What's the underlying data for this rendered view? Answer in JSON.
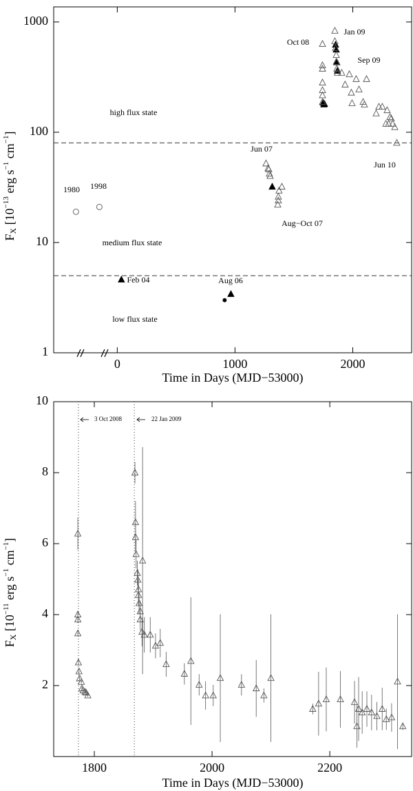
{
  "chart_data": [
    {
      "type": "scatter",
      "ylog": true,
      "xlabel": "Time in Days (MJD−53000)",
      "ylabel_parts": [
        "F",
        "X",
        " [10",
        "−13",
        " erg s",
        "−1",
        " cm",
        "−1",
        "]"
      ],
      "xlim": [
        -540,
        2500
      ],
      "ylim": [
        1,
        1370
      ],
      "xticks": [
        0,
        1000,
        2000
      ],
      "yticks": [
        1,
        10,
        100,
        1000
      ],
      "hlines": [
        80,
        5
      ],
      "annotations": [
        "1980",
        "1998",
        "high flux state",
        "medium flux state",
        "low flux state",
        "Feb 04",
        "Aug 06",
        "Jun 07",
        "Aug−Oct 07",
        "Oct 08",
        "Jan 09",
        "Sep 09",
        "Jun 10"
      ],
      "series": [
        {
          "marker": "open-circle",
          "color": "#555555",
          "x": [
            -351,
            -152
          ],
          "values": [
            19,
            21
          ]
        },
        {
          "marker": "filled-circle",
          "color": "#000000",
          "x": [
            912
          ],
          "values": [
            3.0
          ]
        },
        {
          "marker": "filled-triangle",
          "color": "#000000",
          "x": [
            35,
            965,
            1316,
            1749,
            1754,
            1760,
            1854,
            1860,
            1865,
            1870
          ],
          "values": [
            4.6,
            3.4,
            32,
            185,
            178,
            180,
            620,
            560,
            430,
            360
          ]
        },
        {
          "marker": "open-triangle",
          "color": "#555555",
          "x": [
            1263,
            1281,
            1287,
            1292,
            1298,
            1368,
            1368,
            1363,
            1374,
            1398,
            1743,
            1743,
            1743,
            1743,
            1743,
            1743,
            1743,
            1848,
            1848,
            1854,
            1860,
            1860,
            1865,
            1870,
            1906,
            1935,
            1971,
            1988,
            1994,
            2029,
            2053,
            2088,
            2099,
            2117,
            2199,
            2222,
            2251,
            2281,
            2292,
            2304,
            2316,
            2327,
            2339,
            2357,
            2374
          ],
          "values": [
            52,
            47,
            46,
            42,
            40,
            26,
            24,
            22,
            29.5,
            32,
            631,
            404,
            376,
            282,
            240,
            216,
            188,
            830,
            668,
            580,
            500,
            434,
            376,
            345,
            345,
            270,
            335,
            228,
            183,
            303,
            244,
            188,
            178,
            303,
            148,
            170,
            170,
            119,
            158,
            119,
            137,
            133,
            119,
            111,
            80
          ]
        }
      ]
    },
    {
      "type": "scatter",
      "ylog": false,
      "xlabel": "Time in Days (MJD−53000)",
      "ylabel_parts": [
        "F",
        "X",
        " [10",
        "−11",
        " erg s",
        "−1",
        " cm",
        "−1",
        "]"
      ],
      "xlim": [
        1731,
        2339
      ],
      "ylim": [
        0,
        10
      ],
      "xticks": [
        1800,
        2000,
        2200
      ],
      "yticks": [
        2,
        4,
        6,
        8,
        10
      ],
      "vlines": [
        1773,
        1868
      ],
      "annotations": [
        "3 Oct 2008",
        "22 Jan 2009"
      ],
      "series": [
        {
          "marker": "open-triangle",
          "color": "#555555",
          "x": [
            1772,
            1772,
            1772,
            1772,
            1773,
            1774,
            1775,
            1778,
            1779,
            1781,
            1784,
            1786,
            1789,
            1869,
            1870,
            1870,
            1871,
            1873,
            1874,
            1875,
            1875,
            1876,
            1878,
            1878,
            1882,
            1881,
            1885,
            1895,
            1904,
            1912,
            1922,
            1953,
            1964,
            1978,
            1989,
            2002,
            2014,
            2050,
            2075,
            2088,
            2100,
            2171,
            2181,
            2194,
            2218,
            2242,
            2246,
            2249,
            2255,
            2263,
            2271,
            2280,
            2289,
            2296,
            2305,
            2315,
            2324
          ],
          "values": [
            6.28,
            4.0,
            3.86,
            3.47,
            2.65,
            2.4,
            2.2,
            2.1,
            1.92,
            1.86,
            1.82,
            1.8,
            1.72,
            8.0,
            6.6,
            6.18,
            5.7,
            5.17,
            4.98,
            4.71,
            4.55,
            4.32,
            4.09,
            3.86,
            5.52,
            3.51,
            3.43,
            3.43,
            3.12,
            3.2,
            2.6,
            2.33,
            2.69,
            2.02,
            1.72,
            1.72,
            2.21,
            2.02,
            1.92,
            1.72,
            2.21,
            1.34,
            1.49,
            1.61,
            1.61,
            1.53,
            0.85,
            1.34,
            1.24,
            1.34,
            1.24,
            1.14,
            1.34,
            1.05,
            1.1,
            2.11,
            0.85
          ],
          "errors": [
            0.45,
            0.1,
            0.1,
            0.08,
            0.08,
            0.06,
            0.06,
            0.05,
            0.05,
            0.05,
            0.04,
            0.04,
            0.04,
            0.3,
            0.6,
            0.4,
            0.4,
            0.35,
            0.3,
            0.3,
            0.3,
            0.3,
            0.3,
            0.3,
            3.2,
            0.4,
            0.5,
            0.5,
            0.35,
            0.4,
            0.35,
            0.3,
            1.8,
            0.3,
            0.4,
            0.3,
            1.8,
            0.3,
            0.8,
            0.2,
            1.8,
            0.15,
            0.9,
            0.9,
            0.8,
            0.6,
            0.6,
            0.9,
            0.6,
            0.5,
            0.5,
            0.4,
            0.6,
            0.3,
            0.4,
            1.9,
            0.1
          ]
        }
      ]
    }
  ]
}
